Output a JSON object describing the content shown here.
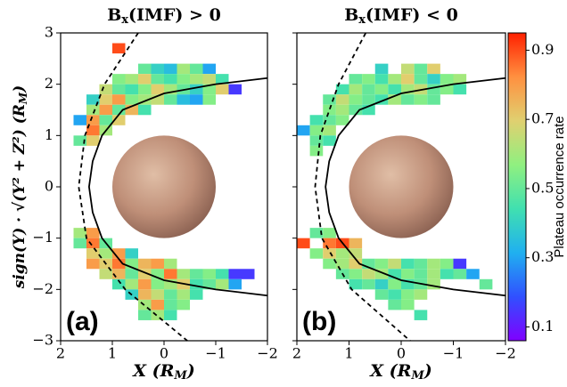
{
  "chart_data": [
    {
      "type": "heatmap",
      "title": [
        "B",
        "x",
        "(IMF) > 0"
      ],
      "panel_label": "(a)",
      "xlabel": [
        "X (R",
        "M",
        ")"
      ],
      "ylabel": [
        "sign(Y) · √(Y² + Z²) (R",
        "M",
        ")"
      ],
      "xlim": [
        2,
        -2
      ],
      "ylim": [
        -3,
        3
      ],
      "cell_width": 0.25,
      "cell_height": 0.2,
      "xticks": [
        2,
        1,
        0,
        {
          "value": -1,
          "label": "−1"
        },
        {
          "value": -2,
          "label": "−2"
        }
      ],
      "yticks": [
        {
          "value": -3,
          "label": "−3"
        },
        {
          "value": -2,
          "label": "−2"
        },
        {
          "value": -1,
          "label": "−1"
        },
        0,
        1,
        2,
        3
      ],
      "show_ytick_labels": true,
      "rows": [
        {
          "y": 2.7,
          "x": [
            0.875
          ],
          "values": [
            0.9
          ]
        },
        {
          "y": 2.3,
          "x": [
            0.375,
            0.125,
            -0.125,
            -0.375,
            -0.625,
            -0.875
          ],
          "values": [
            0.5,
            0.4,
            0.35,
            0.6,
            0.5,
            0.3
          ]
        },
        {
          "y": 2.1,
          "x": [
            0.875,
            0.625,
            0.375,
            0.125,
            -0.125,
            -0.375,
            -0.625,
            -0.875,
            -1.125
          ],
          "values": [
            0.55,
            0.6,
            0.7,
            0.5,
            0.45,
            0.55,
            0.6,
            0.65,
            0.45
          ]
        },
        {
          "y": 1.9,
          "x": [
            1.125,
            0.875,
            0.625,
            0.375,
            0.125,
            -0.125,
            -0.375,
            -0.625,
            -0.875,
            -1.125,
            -1.375
          ],
          "values": [
            0.65,
            0.5,
            0.45,
            0.55,
            0.7,
            0.6,
            0.5,
            0.4,
            0.55,
            0.7,
            0.15
          ]
        },
        {
          "y": 1.7,
          "x": [
            1.375,
            1.125,
            0.875,
            0.625,
            0.375,
            0.125,
            -0.125,
            -0.375,
            -0.625,
            -0.875
          ],
          "values": [
            0.4,
            0.7,
            0.8,
            0.55,
            0.6,
            0.65,
            0.5,
            0.35,
            0.3,
            0.55
          ]
        },
        {
          "y": 1.5,
          "x": [
            1.375,
            1.125,
            0.875,
            0.625,
            0.375
          ],
          "values": [
            0.6,
            0.8,
            0.5,
            0.75,
            0.45
          ]
        },
        {
          "y": 1.3,
          "x": [
            1.625,
            1.375,
            1.125,
            0.875
          ],
          "values": [
            0.3,
            0.8,
            0.5,
            0.7
          ]
        },
        {
          "y": 1.1,
          "x": [
            1.375,
            1.125
          ],
          "values": [
            0.85,
            0.6
          ]
        },
        {
          "y": 0.9,
          "x": [
            1.625,
            1.375
          ],
          "values": [
            0.5,
            0.7
          ]
        },
        {
          "y": -0.9,
          "x": [
            1.625,
            1.375
          ],
          "values": [
            0.6,
            0.8
          ]
        },
        {
          "y": -1.1,
          "x": [
            1.625,
            1.375,
            1.125
          ],
          "values": [
            0.5,
            0.85,
            0.5
          ]
        },
        {
          "y": -1.3,
          "x": [
            1.375,
            1.125,
            0.875,
            0.625
          ],
          "values": [
            0.7,
            0.6,
            0.8,
            0.4
          ]
        },
        {
          "y": -1.5,
          "x": [
            1.375,
            1.125,
            0.875,
            0.625,
            0.375,
            0.125,
            -0.125
          ],
          "values": [
            0.8,
            0.7,
            0.85,
            0.55,
            0.75,
            0.8,
            0.6
          ]
        },
        {
          "y": -1.7,
          "x": [
            1.125,
            0.875,
            0.625,
            0.375,
            0.125,
            -0.125,
            -0.375,
            -0.625,
            -0.875,
            -1.125,
            -1.375,
            -1.625
          ],
          "values": [
            0.65,
            0.75,
            0.5,
            0.7,
            0.55,
            0.85,
            0.6,
            0.5,
            0.55,
            0.45,
            0.15,
            0.15
          ]
        },
        {
          "y": -1.9,
          "x": [
            0.875,
            0.625,
            0.375,
            0.125,
            -0.125,
            -0.375,
            -0.625,
            -0.875,
            -1.125,
            -1.375
          ],
          "values": [
            0.45,
            0.6,
            0.8,
            0.55,
            0.6,
            0.7,
            0.45,
            0.5,
            0.6,
            0.3
          ]
        },
        {
          "y": -2.1,
          "x": [
            0.625,
            0.375,
            0.125,
            -0.125,
            -0.375,
            -0.625
          ],
          "values": [
            0.4,
            0.75,
            0.65,
            0.5,
            0.6,
            0.45
          ]
        },
        {
          "y": -2.3,
          "x": [
            0.375,
            0.125,
            -0.125,
            -0.375
          ],
          "values": [
            0.6,
            0.8,
            0.5,
            0.55
          ]
        },
        {
          "y": -2.5,
          "x": [
            0.375,
            0.125,
            -0.125
          ],
          "values": [
            0.5,
            0.6,
            0.45
          ]
        }
      ],
      "lines": [
        {
          "style": "solid",
          "x": [
            -2,
            -1,
            0,
            0.8,
            1.2,
            1.38,
            1.45,
            1.38,
            1.2,
            0.8,
            0,
            -1,
            -2
          ],
          "y": [
            2.12,
            2.0,
            1.82,
            1.5,
            1,
            0.5,
            0,
            -0.5,
            -1,
            -1.5,
            -1.82,
            -2.0,
            -2.12
          ]
        },
        {
          "style": "dashed",
          "x": [
            0.5,
            1.15,
            1.53,
            1.65,
            1.5,
            0.75,
            -0.45
          ],
          "y": [
            3,
            2,
            1,
            0,
            -1,
            -2,
            -3
          ]
        }
      ]
    },
    {
      "type": "heatmap",
      "title": [
        "B",
        "x",
        "(IMF) < 0"
      ],
      "panel_label": "(b)",
      "xlabel": [
        "X (R",
        "M",
        ")"
      ],
      "xlim": [
        2,
        -2
      ],
      "ylim": [
        -3,
        3
      ],
      "cell_width": 0.25,
      "cell_height": 0.2,
      "xticks": [
        2,
        1,
        0,
        {
          "value": -1,
          "label": "−1"
        },
        {
          "value": -2,
          "label": "−2"
        }
      ],
      "yticks": [
        -3,
        -2,
        -1,
        0,
        1,
        2,
        3
      ],
      "show_ytick_labels": false,
      "rows": [
        {
          "y": 2.3,
          "x": [
            0.375,
            -0.125,
            -0.375,
            -0.625
          ],
          "values": [
            0.4,
            0.65,
            0.5,
            0.7
          ]
        },
        {
          "y": 2.1,
          "x": [
            0.875,
            0.625,
            0.375,
            0.125,
            -0.125,
            -0.375,
            -0.625,
            -0.875,
            -1.125
          ],
          "values": [
            0.5,
            0.55,
            0.45,
            0.6,
            0.7,
            0.5,
            0.4,
            0.55,
            0.6
          ]
        },
        {
          "y": 1.9,
          "x": [
            1.125,
            0.875,
            0.625,
            0.375,
            0.125,
            -0.125,
            -0.375,
            -0.625,
            -0.875,
            -1.125
          ],
          "values": [
            0.45,
            0.6,
            0.5,
            0.55,
            0.45,
            0.6,
            0.65,
            0.5,
            0.55,
            0.45
          ]
        },
        {
          "y": 1.7,
          "x": [
            1.375,
            1.125,
            0.875,
            0.625,
            0.375,
            0.125,
            -0.125,
            -0.375,
            -0.625
          ],
          "values": [
            0.5,
            0.65,
            0.55,
            0.5,
            0.45,
            0.6,
            0.5,
            0.55,
            0.5
          ]
        },
        {
          "y": 1.5,
          "x": [
            1.375,
            1.125,
            0.875,
            0.625
          ],
          "values": [
            0.55,
            0.6,
            0.5,
            0.45
          ]
        },
        {
          "y": 1.3,
          "x": [
            1.625,
            1.375,
            1.125
          ],
          "values": [
            0.45,
            0.5,
            0.55
          ]
        },
        {
          "y": 1.1,
          "x": [
            1.875,
            1.625,
            1.375
          ],
          "values": [
            0.3,
            0.55,
            0.6
          ]
        },
        {
          "y": 0.9,
          "x": [
            1.625,
            1.375
          ],
          "values": [
            0.5,
            0.45
          ]
        },
        {
          "y": 0.7,
          "x": [
            1.625
          ],
          "values": [
            0.55
          ]
        },
        {
          "y": -0.9,
          "x": [
            1.625,
            1.375
          ],
          "values": [
            0.5,
            0.55
          ]
        },
        {
          "y": -1.1,
          "x": [
            1.875,
            1.375,
            1.125,
            0.875
          ],
          "values": [
            0.9,
            0.85,
            0.9,
            0.75
          ]
        },
        {
          "y": -1.3,
          "x": [
            1.625,
            1.375,
            1.125,
            0.875
          ],
          "values": [
            0.55,
            0.7,
            0.6,
            0.65
          ]
        },
        {
          "y": -1.5,
          "x": [
            1.375,
            1.125,
            0.875,
            0.625,
            0.375,
            0.125,
            -0.125,
            -0.375,
            -0.625,
            -0.875,
            -1.125
          ],
          "values": [
            0.55,
            0.6,
            0.7,
            0.5,
            0.55,
            0.65,
            0.45,
            0.5,
            0.6,
            0.55,
            0.15
          ]
        },
        {
          "y": -1.7,
          "x": [
            1.125,
            0.875,
            0.625,
            0.375,
            0.125,
            -0.125,
            -0.375,
            -0.625,
            -0.875,
            -1.125,
            -1.375
          ],
          "values": [
            0.5,
            0.55,
            0.65,
            0.6,
            0.45,
            0.55,
            0.5,
            0.6,
            0.45,
            0.5,
            0.3
          ]
        },
        {
          "y": -1.9,
          "x": [
            0.875,
            0.625,
            0.375,
            0.125,
            -0.125,
            -0.375,
            -0.625,
            -1.625
          ],
          "values": [
            0.45,
            0.5,
            0.4,
            0.55,
            0.45,
            0.5,
            0.6,
            0.5
          ]
        },
        {
          "y": -2.1,
          "x": [
            0.375,
            0.125,
            -0.125,
            -0.375
          ],
          "values": [
            0.5,
            0.45,
            0.55,
            0.6
          ]
        },
        {
          "y": -2.3,
          "x": [
            0.125,
            -0.125
          ],
          "values": [
            0.5,
            0.55
          ]
        },
        {
          "y": -2.5,
          "x": [
            -0.375
          ],
          "values": [
            0.45
          ]
        }
      ],
      "lines": [
        {
          "style": "solid",
          "x": [
            -2,
            -1,
            0,
            0.8,
            1.2,
            1.38,
            1.45,
            1.38,
            1.2,
            0.8,
            0,
            -1,
            -2
          ],
          "y": [
            2.12,
            2.0,
            1.82,
            1.5,
            1,
            0.5,
            0,
            -0.5,
            -1,
            -1.5,
            -1.82,
            -2.0,
            -2.12
          ]
        },
        {
          "style": "dashed",
          "x": [
            0.68,
            1.2,
            1.55,
            1.65,
            1.52,
            0.95,
            -0.17
          ],
          "y": [
            3,
            2,
            1,
            0,
            -1,
            -2,
            -3
          ]
        }
      ]
    }
  ],
  "colorbar": {
    "label": "Plateau occurrence rate",
    "clim": [
      0.06,
      0.95
    ],
    "ticks": [
      0.1,
      0.3,
      0.5,
      0.7,
      0.9
    ],
    "colormap": [
      "#8000ff",
      "#3050ff",
      "#20b0f0",
      "#40e0b0",
      "#90f080",
      "#e0d070",
      "#ff9040",
      "#ff2000"
    ]
  }
}
